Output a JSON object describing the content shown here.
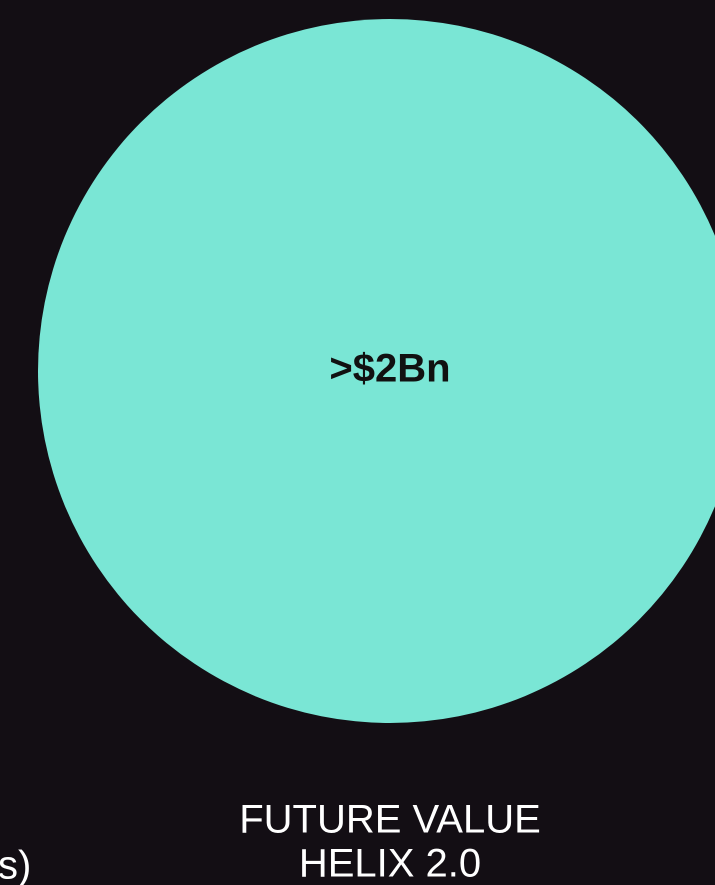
{
  "circle": {
    "label": ">$2Bn"
  },
  "caption": {
    "line1": "FUTURE VALUE",
    "line2": "HELIX 2.0"
  },
  "left_caption_fragment": "s)"
}
